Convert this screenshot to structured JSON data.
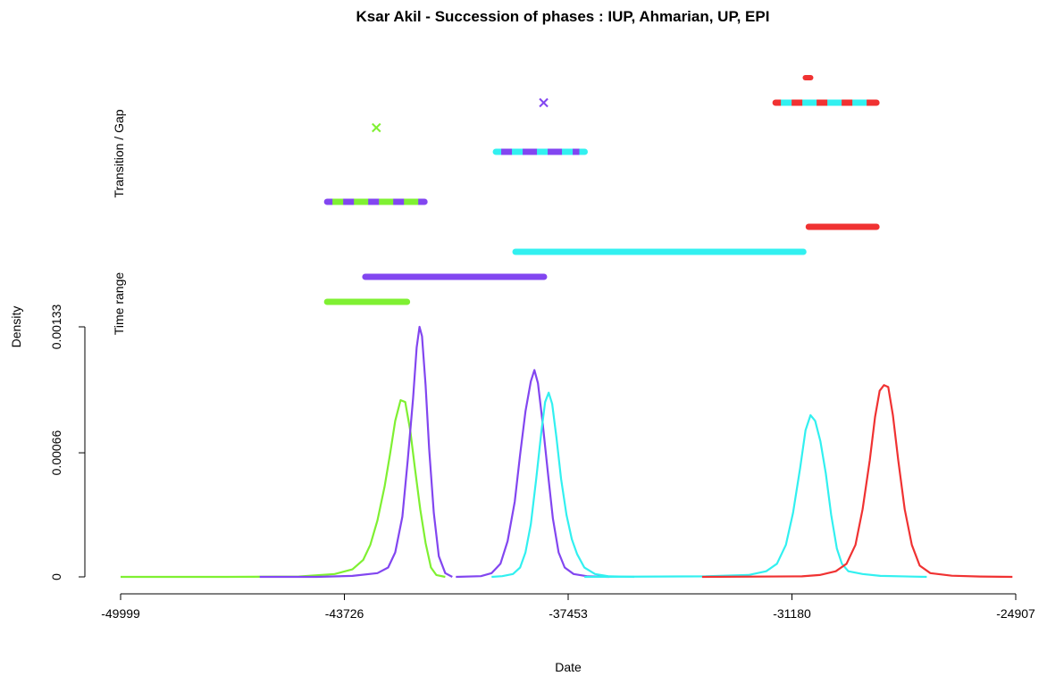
{
  "chart_data": {
    "type": "line",
    "title": "Ksar Akil - Succession of phases : IUP, Ahmarian, UP, EPI",
    "xlabel": "Date",
    "ylabel": "Density",
    "xlim": [
      -49999,
      -24907
    ],
    "ylim": [
      0,
      0.00133
    ],
    "x_ticks": [
      "-49999",
      "-43726",
      "-37453",
      "-31180",
      "-24907"
    ],
    "y_ticks": [
      "0",
      "0.00066",
      "0.00133"
    ],
    "band_labels": [
      "Transition / Gap",
      "Time range"
    ],
    "colors": {
      "IUP": "#7FF032",
      "Ahmarian": "#8246F0",
      "UP": "#32F0F0",
      "EPI": "#F03232"
    },
    "density_series": [
      {
        "color": "#7FF032",
        "points": [
          [
            -49999,
            0
          ],
          [
            -47000,
            0
          ],
          [
            -45000,
            2e-06
          ],
          [
            -44000,
            1.5e-05
          ],
          [
            -43500,
            4e-05
          ],
          [
            -43200,
            9e-05
          ],
          [
            -43000,
            0.00017
          ],
          [
            -42800,
            0.0003
          ],
          [
            -42600,
            0.00048
          ],
          [
            -42450,
            0.00065
          ],
          [
            -42300,
            0.00083
          ],
          [
            -42150,
            0.00094
          ],
          [
            -42020,
            0.00093
          ],
          [
            -41880,
            0.00078
          ],
          [
            -41750,
            0.00058
          ],
          [
            -41600,
            0.00036
          ],
          [
            -41450,
            0.00018
          ],
          [
            -41300,
            5e-05
          ],
          [
            -41150,
            1e-05
          ],
          [
            -40900,
            0
          ]
        ]
      },
      {
        "color": "#8246F0",
        "points": [
          [
            -46100,
            0
          ],
          [
            -44500,
            0
          ],
          [
            -43500,
            5e-06
          ],
          [
            -42800,
            2e-05
          ],
          [
            -42500,
            5e-05
          ],
          [
            -42300,
            0.00013
          ],
          [
            -42100,
            0.00032
          ],
          [
            -41950,
            0.00062
          ],
          [
            -41800,
            0.00095
          ],
          [
            -41700,
            0.00122
          ],
          [
            -41620,
            0.00133
          ],
          [
            -41550,
            0.00128
          ],
          [
            -41450,
            0.00102
          ],
          [
            -41350,
            0.00068
          ],
          [
            -41220,
            0.00034
          ],
          [
            -41080,
            0.00011
          ],
          [
            -40900,
            2e-05
          ],
          [
            -40700,
            0
          ]
        ]
      },
      {
        "color": "#8246F0",
        "points": [
          [
            -40600,
            0
          ],
          [
            -39900,
            4e-06
          ],
          [
            -39600,
            2e-05
          ],
          [
            -39350,
            7e-05
          ],
          [
            -39150,
            0.00019
          ],
          [
            -38950,
            0.0004
          ],
          [
            -38800,
            0.00065
          ],
          [
            -38650,
            0.00088
          ],
          [
            -38500,
            0.00104
          ],
          [
            -38400,
            0.0011
          ],
          [
            -38300,
            0.00103
          ],
          [
            -38170,
            0.00082
          ],
          [
            -38020,
            0.00055
          ],
          [
            -37880,
            0.00031
          ],
          [
            -37720,
            0.00013
          ],
          [
            -37550,
            5e-05
          ],
          [
            -37300,
            1.5e-05
          ],
          [
            -36900,
            3e-06
          ],
          [
            -36300,
            0
          ]
        ]
      },
      {
        "color": "#32F0F0",
        "points": [
          [
            -39600,
            0
          ],
          [
            -39300,
            4e-06
          ],
          [
            -39000,
            1.5e-05
          ],
          [
            -38800,
            5e-05
          ],
          [
            -38650,
            0.00013
          ],
          [
            -38500,
            0.00028
          ],
          [
            -38350,
            0.00052
          ],
          [
            -38200,
            0.00078
          ],
          [
            -38100,
            0.00093
          ],
          [
            -38000,
            0.00098
          ],
          [
            -37900,
            0.00092
          ],
          [
            -37780,
            0.00074
          ],
          [
            -37650,
            0.00052
          ],
          [
            -37500,
            0.00033
          ],
          [
            -37350,
            0.0002
          ],
          [
            -37200,
            0.00012
          ],
          [
            -37000,
            5e-05
          ],
          [
            -36700,
            1.5e-05
          ],
          [
            -36300,
            3e-06
          ],
          [
            -35600,
            0
          ]
        ]
      },
      {
        "color": "#32F0F0",
        "points": [
          [
            -37000,
            0
          ],
          [
            -33600,
            3e-06
          ],
          [
            -32400,
            1e-05
          ],
          [
            -31900,
            3e-05
          ],
          [
            -31600,
            7e-05
          ],
          [
            -31350,
            0.00017
          ],
          [
            -31150,
            0.00034
          ],
          [
            -30950,
            0.00058
          ],
          [
            -30800,
            0.00078
          ],
          [
            -30660,
            0.00086
          ],
          [
            -30530,
            0.00083
          ],
          [
            -30380,
            0.00072
          ],
          [
            -30230,
            0.00055
          ],
          [
            -30080,
            0.00033
          ],
          [
            -29920,
            0.00015
          ],
          [
            -29780,
            7e-05
          ],
          [
            -29600,
            3e-05
          ],
          [
            -29200,
            1.5e-05
          ],
          [
            -28700,
            5e-06
          ],
          [
            -27400,
            0
          ]
        ]
      },
      {
        "color": "#F03232",
        "points": [
          [
            -33700,
            0
          ],
          [
            -30900,
            3e-06
          ],
          [
            -30400,
            1e-05
          ],
          [
            -29950,
            3e-05
          ],
          [
            -29650,
            7e-05
          ],
          [
            -29400,
            0.00017
          ],
          [
            -29200,
            0.00036
          ],
          [
            -29000,
            0.00062
          ],
          [
            -28850,
            0.00085
          ],
          [
            -28720,
            0.00099
          ],
          [
            -28600,
            0.00102
          ],
          [
            -28480,
            0.00101
          ],
          [
            -28350,
            0.00086
          ],
          [
            -28200,
            0.00062
          ],
          [
            -28020,
            0.00036
          ],
          [
            -27820,
            0.00017
          ],
          [
            -27600,
            6e-05
          ],
          [
            -27300,
            2e-05
          ],
          [
            -26700,
            6e-06
          ],
          [
            -25900,
            2e-06
          ],
          [
            -25000,
            0
          ]
        ]
      }
    ],
    "time_ranges": [
      {
        "color": "#7FF032",
        "start": -44210,
        "end": -41970
      },
      {
        "color": "#8246F0",
        "start": -43140,
        "end": -38130
      },
      {
        "color": "#32F0F0",
        "start": -38930,
        "end": -30860
      },
      {
        "color": "#F03232",
        "start": -30710,
        "end": -28810
      }
    ],
    "transitions": [
      {
        "colors": [
          "#8246F0",
          "#7FF032"
        ],
        "start": -44210,
        "end": -41480
      },
      {
        "colors": [
          "#32F0F0",
          "#8246F0"
        ],
        "start": -39480,
        "end": -36990
      },
      {
        "colors": [
          "#F03232",
          "#32F0F0"
        ],
        "start": -31640,
        "end": -28810
      }
    ],
    "gaps": [
      {
        "color": "#7FF032",
        "value": -42830
      },
      {
        "color": "#8246F0",
        "value": -38140
      },
      {
        "color": "#F03232",
        "value": -30730
      }
    ]
  }
}
